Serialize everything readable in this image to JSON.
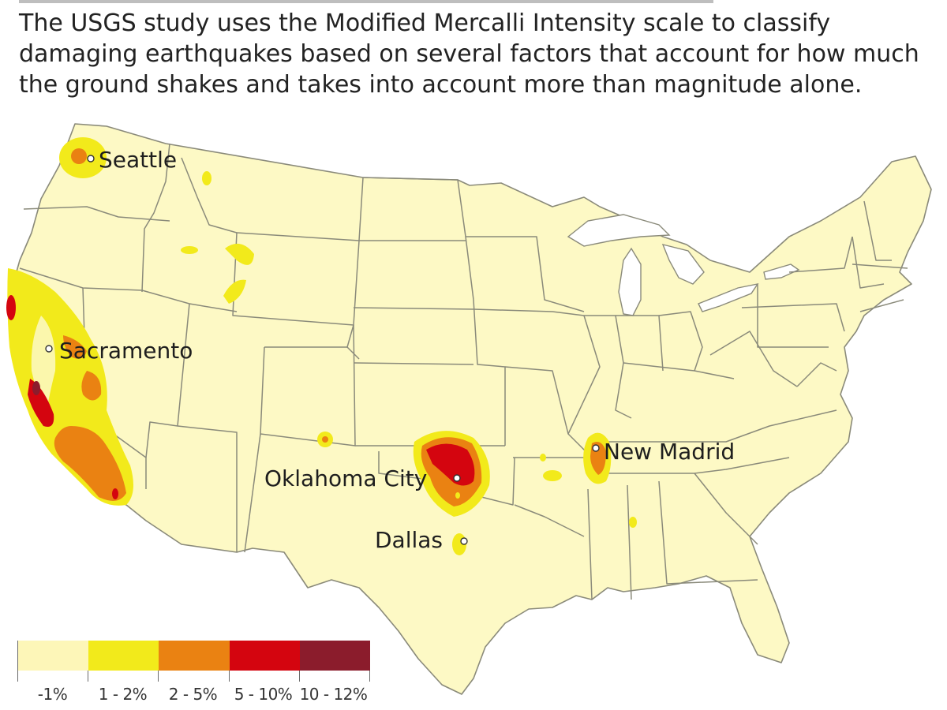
{
  "caption": "The USGS study uses the Modified Mercalli Intensity scale to classify damaging earthquakes based on several factors that account for how much the ground shakes and takes into account more than magnitude alone.",
  "colors": {
    "base": "#fdf9c5",
    "border": "#8a8a7a",
    "yellow": "#f2ea1b",
    "orange": "#ea8212",
    "red": "#d4050f",
    "maroon": "#8b1c2c"
  },
  "cities": [
    {
      "name": "Seattle"
    },
    {
      "name": "Sacramento"
    },
    {
      "name": "Oklahoma City"
    },
    {
      "name": "Dallas"
    },
    {
      "name": "New Madrid"
    }
  ],
  "legend": {
    "bins": [
      {
        "label": "-1%",
        "color": "#fdf6b8"
      },
      {
        "label": "1 - 2%",
        "color": "#f2ea1b"
      },
      {
        "label": "2 - 5%",
        "color": "#ea8212"
      },
      {
        "label": "5 - 10%",
        "color": "#d4050f"
      },
      {
        "label": "10 - 12%",
        "color": "#8b1c2c"
      }
    ]
  }
}
